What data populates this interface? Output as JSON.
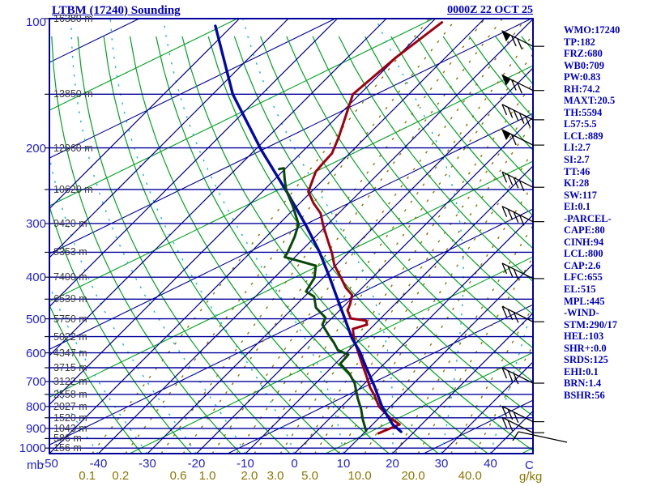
{
  "title": "LTBM (17240) Sounding",
  "datetime": "0000Z 22 OCT 25",
  "units": {
    "pressure": "mb",
    "temperature": "C",
    "mixing_ratio": "g/kg"
  },
  "colors": {
    "frame_navy": "#000099",
    "axis_label_blue": "#2222cc",
    "text_blue": "#0000bb",
    "dry_adiabat_green": "#00a321",
    "moist_adiabat_cyan": "#18b8cf",
    "mixing_ratio_olive": "#8a7500",
    "height_label_gray": "#3c3c3c",
    "temperature_red": "#a00010",
    "parcel_blue": "#0008a8",
    "dewpoint_dark_green": "#0a470a",
    "wind_barb_black": "#000000"
  },
  "axes": {
    "pressure_tick_labels": [
      100,
      200,
      300,
      400,
      500,
      600,
      700,
      800,
      900,
      1000
    ],
    "pressure_lines": [
      100,
      150,
      200,
      250,
      300,
      350,
      400,
      450,
      500,
      550,
      600,
      650,
      700,
      750,
      800,
      850,
      900,
      950,
      1000
    ],
    "height_labels": [
      "16380 m",
      "13850 m",
      "12060 m",
      "10620 m",
      "9420 m",
      "8353 m",
      "7400 m",
      "6539 m",
      "5750 m",
      "5022 m",
      "4347 m",
      "3715 m",
      "3122 m",
      "2558 m",
      "2027 m",
      "1520 m",
      "1043 m",
      "586 m",
      "156 m"
    ],
    "temp_tick_labels": [
      -50,
      -40,
      -30,
      -20,
      -10,
      0,
      10,
      20,
      30,
      40
    ],
    "mixing_ratio_ticks": [
      {
        "label": "0.1",
        "value": 0.1
      },
      {
        "label": "0.2",
        "value": 0.2
      },
      {
        "label": "0.6",
        "value": 0.6
      },
      {
        "label": "1.0",
        "value": 1.0
      },
      {
        "label": "2.0",
        "value": 2.0
      },
      {
        "label": "3.0",
        "value": 3.0
      },
      {
        "label": "5.0",
        "value": 5.0
      },
      {
        "label": "10.0",
        "value": 10.0
      },
      {
        "label": "20.0",
        "value": 20.0
      },
      {
        "label": "40.0",
        "value": 40.0
      }
    ]
  },
  "station_panel": [
    "WMO:17240",
    "TP:182",
    "FRZ:680",
    "WB0:709",
    "PW:0.83",
    "RH:74.2",
    "MAXT:20.5",
    "TH:5594",
    "L57:5.5",
    "LCL:889",
    "LI:2.7",
    "SI:2.7",
    "TT:46",
    "KI:28",
    "SW:117",
    "EI:0.1",
    "-PARCEL-",
    "CAPE:80",
    "CINH:94",
    "LCL:800",
    "CAP:2.6",
    "LFC:655",
    "EL:515",
    "MPL:445",
    "-WIND-",
    "STM:290/17",
    "HEL:103",
    "SHR+:0.0",
    "SRDS:125",
    "EHI:0.1",
    "BRN:1.4",
    "BSHR:56"
  ],
  "chart_data": {
    "type": "line",
    "subtype": "skew-t-log-p-sounding",
    "title": "LTBM (17240) Sounding",
    "xlabel": "C",
    "ylabel": "mb",
    "x_range_C": [
      -50,
      48
    ],
    "y_range_mb": [
      1030,
      100
    ],
    "y_scale": "log",
    "series": [
      {
        "name": "temperature",
        "units": [
          "mb",
          "C"
        ],
        "points": [
          [
            102,
            -57.9
          ],
          [
            123,
            -60.1
          ],
          [
            150,
            -61.4
          ],
          [
            189,
            -55.5
          ],
          [
            206,
            -53.6
          ],
          [
            218,
            -53.4
          ],
          [
            227,
            -53.2
          ],
          [
            253,
            -50.6
          ],
          [
            269,
            -47.2
          ],
          [
            284,
            -43.7
          ],
          [
            303,
            -40.7
          ],
          [
            327,
            -36.9
          ],
          [
            352,
            -33.2
          ],
          [
            375,
            -30.3
          ],
          [
            401,
            -26.4
          ],
          [
            423,
            -23.4
          ],
          [
            440,
            -20.6
          ],
          [
            463,
            -19.1
          ],
          [
            478,
            -18.4
          ],
          [
            499,
            -16.1
          ],
          [
            505,
            -12.5
          ],
          [
            516,
            -11.5
          ],
          [
            528,
            -13.5
          ],
          [
            558,
            -11.2
          ],
          [
            586,
            -8.7
          ],
          [
            612,
            -6.5
          ],
          [
            644,
            -3.9
          ],
          [
            676,
            -1.4
          ],
          [
            722,
            1.9
          ],
          [
            753,
            4.4
          ],
          [
            801,
            7.7
          ],
          [
            826,
            10.0
          ],
          [
            854,
            12.6
          ],
          [
            881,
            15.5
          ],
          [
            924,
            13.0
          ]
        ]
      },
      {
        "name": "parcel-trace",
        "units": [
          "mb",
          "C"
        ],
        "points": [
          [
            104,
            -103.4
          ],
          [
            150,
            -85.9
          ],
          [
            202,
            -68.8
          ],
          [
            253,
            -55.0
          ],
          [
            303,
            -44.2
          ],
          [
            349,
            -36.1
          ],
          [
            401,
            -28.7
          ],
          [
            451,
            -22.6
          ],
          [
            503,
            -16.9
          ],
          [
            556,
            -11.7
          ],
          [
            596,
            -7.5
          ],
          [
            653,
            -2.6
          ],
          [
            718,
            2.6
          ],
          [
            804,
            8.5
          ],
          [
            881,
            14.1
          ],
          [
            916,
            17.3
          ]
        ]
      },
      {
        "name": "dewpoint",
        "units": [
          "mb",
          "C"
        ],
        "points": [
          [
            224,
            -61.2
          ],
          [
            223,
            -60.4
          ],
          [
            237,
            -57.9
          ],
          [
            251,
            -55.4
          ],
          [
            274,
            -50.7
          ],
          [
            301,
            -46.0
          ],
          [
            322,
            -44.2
          ],
          [
            351,
            -42.4
          ],
          [
            359,
            -42.1
          ],
          [
            376,
            -34.0
          ],
          [
            401,
            -31.8
          ],
          [
            432,
            -30.7
          ],
          [
            444,
            -28.0
          ],
          [
            471,
            -25.4
          ],
          [
            497,
            -21.4
          ],
          [
            516,
            -20.6
          ],
          [
            549,
            -16.8
          ],
          [
            568,
            -14.6
          ],
          [
            591,
            -12.3
          ],
          [
            606,
            -9.2
          ],
          [
            636,
            -9.0
          ],
          [
            670,
            -5.2
          ],
          [
            706,
            -2.1
          ],
          [
            767,
            1.7
          ],
          [
            811,
            4.5
          ],
          [
            858,
            7.0
          ],
          [
            912,
            10.0
          ]
        ]
      }
    ],
    "wind_barbs": [
      {
        "p": 116,
        "pennants": 1,
        "barbs": 2
      },
      {
        "p": 147,
        "pennants": 1,
        "barbs": 2
      },
      {
        "p": 172,
        "pennants": 0,
        "barbs": 5
      },
      {
        "p": 197,
        "pennants": 1,
        "barbs": 1
      },
      {
        "p": 247,
        "pennants": 0,
        "barbs": 4
      },
      {
        "p": 297,
        "pennants": 0,
        "barbs": 4
      },
      {
        "p": 403,
        "pennants": 0,
        "barbs": 3
      },
      {
        "p": 508,
        "pennants": 0,
        "barbs": 3
      },
      {
        "p": 706,
        "pennants": 0,
        "barbs": 3
      },
      {
        "p": 868,
        "pennants": 0,
        "barbs": 3
      },
      {
        "p": 921,
        "pennants": 0,
        "barbs": 2
      }
    ],
    "surface_wind_arrow": true,
    "background": {
      "grid": true,
      "isobars_mb": [
        100,
        150,
        200,
        250,
        300,
        350,
        400,
        450,
        500,
        550,
        600,
        650,
        700,
        750,
        800,
        850,
        900,
        950,
        1000
      ],
      "isotherm_range_C": [
        -100,
        40
      ],
      "isotherm_step_C": 10,
      "dry_adiabats_theta_K": {
        "from": 240,
        "to": 460,
        "step": 10
      },
      "moist_adiabats_thetaw_C": {
        "from": -60,
        "to": 40,
        "step": 10
      },
      "mixing_ratio_lines_gkg": [
        0.1,
        0.2,
        0.4,
        0.6,
        1,
        1.5,
        2,
        3,
        4,
        5,
        7,
        10,
        15,
        20,
        30,
        40
      ],
      "secondary_diagonal_lines": true
    }
  }
}
